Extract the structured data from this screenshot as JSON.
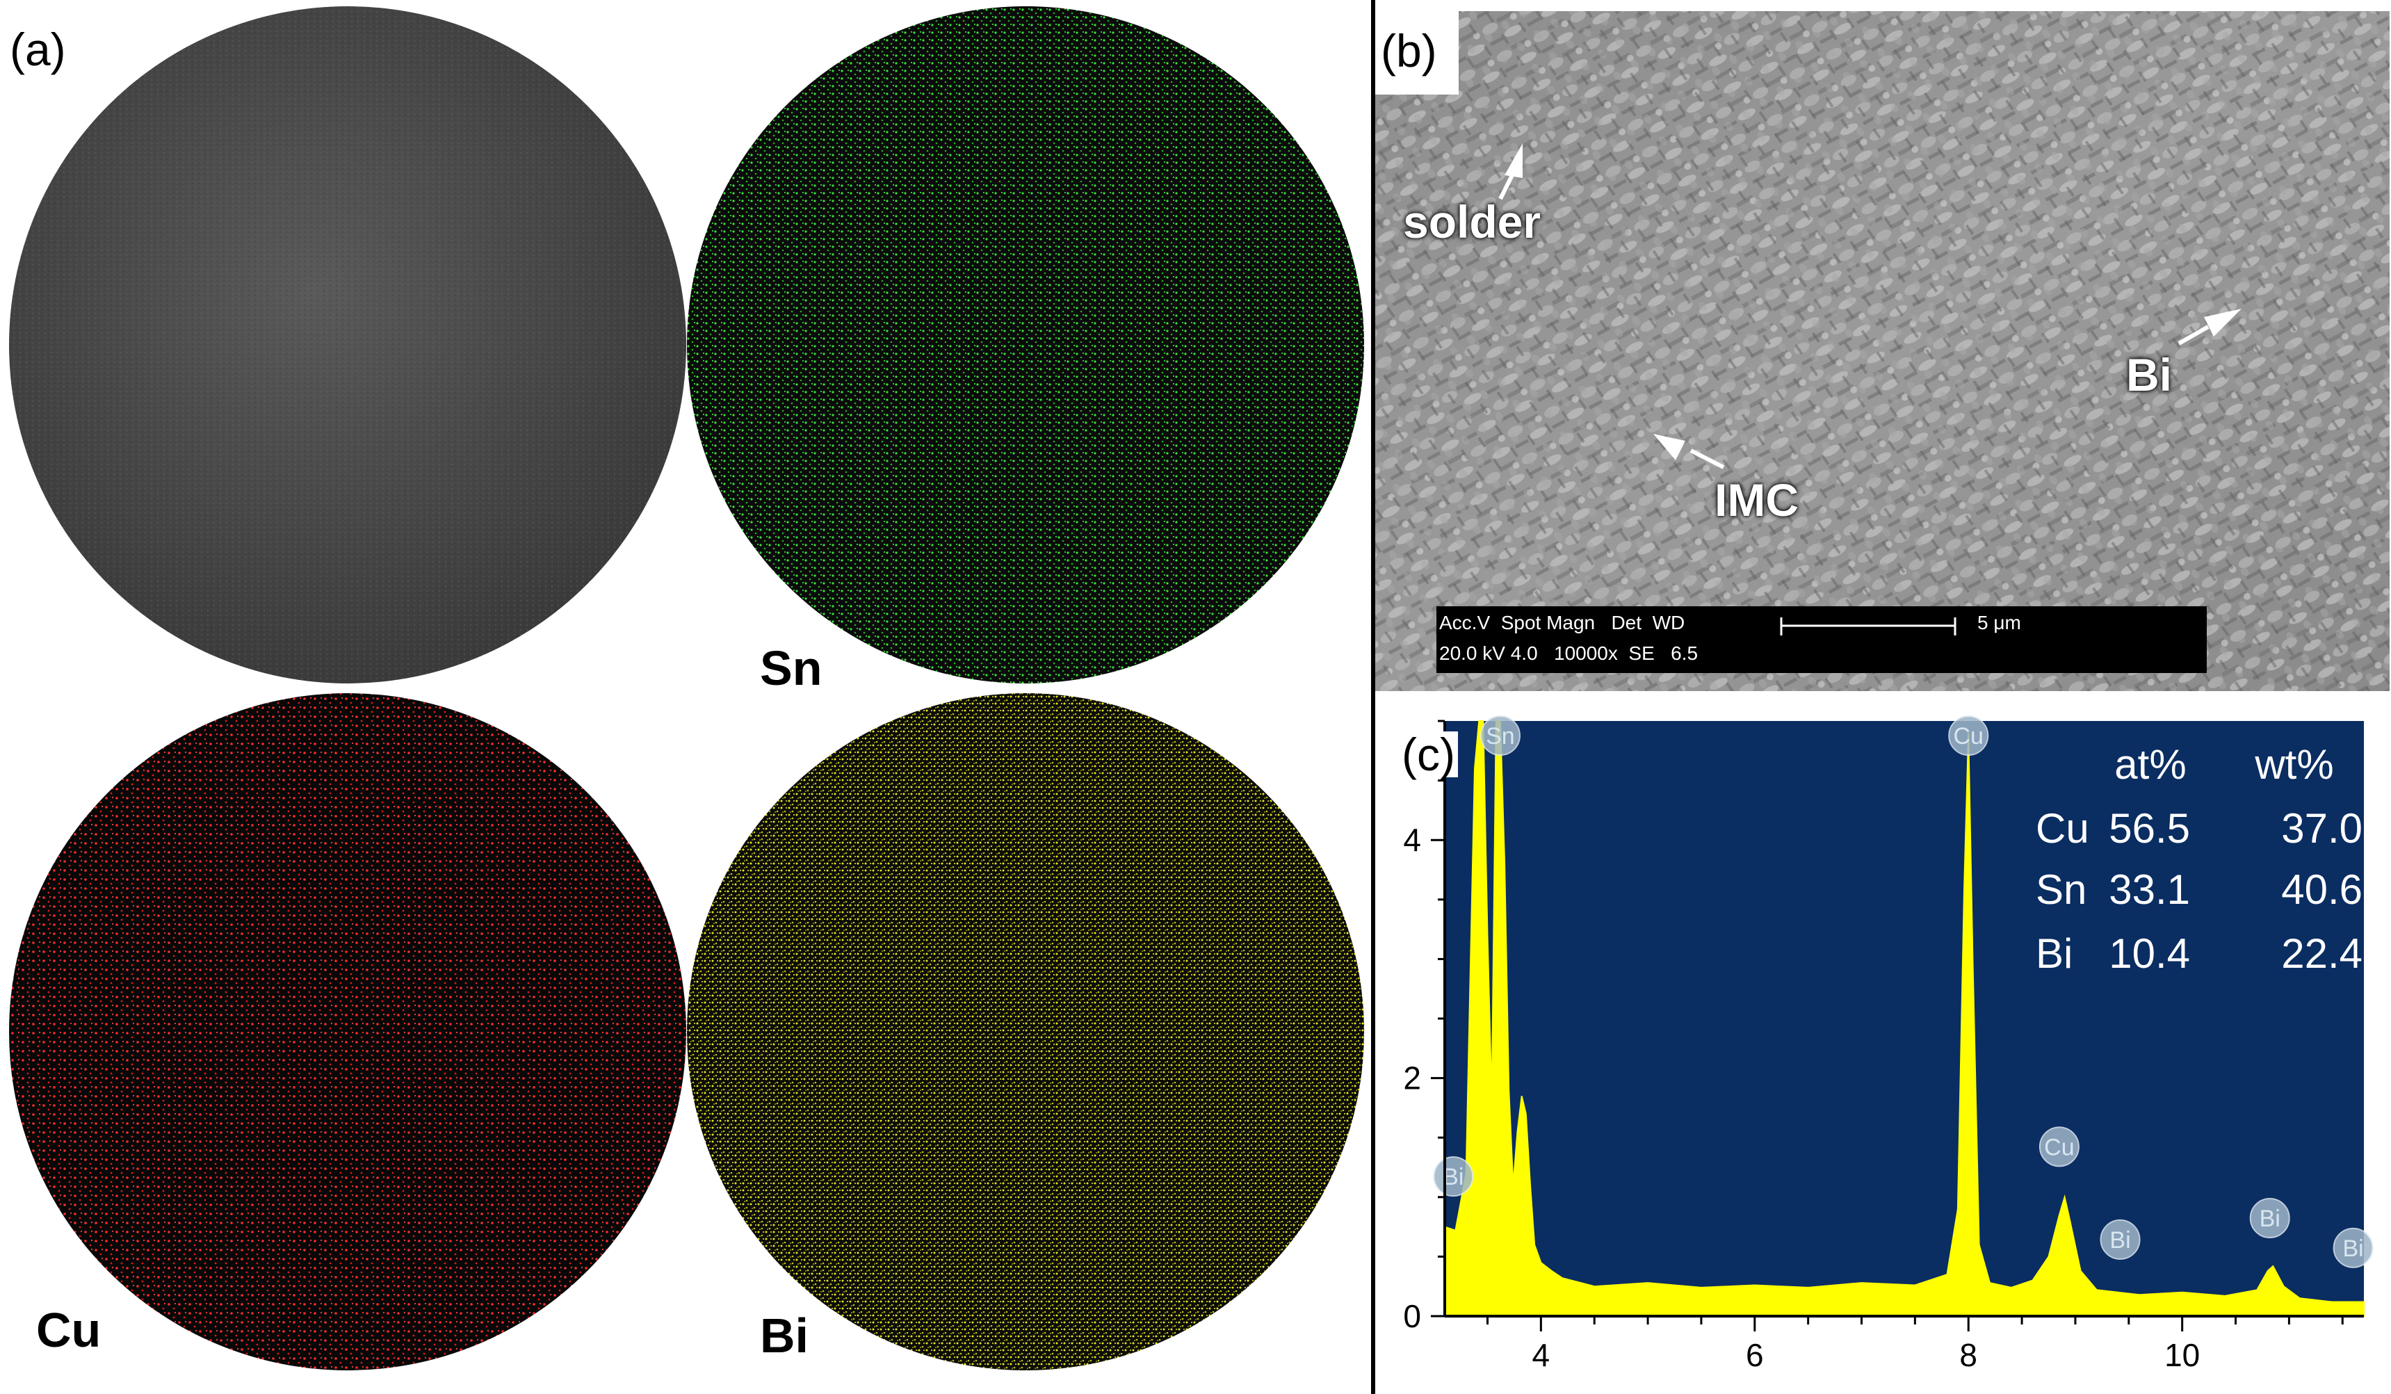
{
  "panel_a": {
    "letter": "(a)",
    "maps": [
      {
        "element": "",
        "color": "#4a4a4a",
        "kind": "sem"
      },
      {
        "element": "Sn",
        "color": "#2fd32f",
        "kind": "map"
      },
      {
        "element": "Cu",
        "color": "#ff2020",
        "kind": "map"
      },
      {
        "element": "Bi",
        "color": "#d8d81a",
        "kind": "map"
      }
    ]
  },
  "panel_b": {
    "letter": "(b)",
    "labels": {
      "solder": "solder",
      "bi": "Bi",
      "imc": "IMC"
    },
    "databar": {
      "row1": "Acc.V  Spot Magn   Det  WD",
      "row2": "20.0 kV 4.0   10000x  SE   6.5",
      "scale": "5 μm"
    }
  },
  "panel_c": {
    "letter": "(c)",
    "table": {
      "header": [
        "",
        "at%",
        "wt%"
      ],
      "rows": [
        [
          "Cu",
          "56.5",
          "37.0"
        ],
        [
          "Sn",
          "33.1",
          "40.6"
        ],
        [
          "Bi",
          "10.4",
          "22.4"
        ]
      ]
    },
    "colors": {
      "background": "#0a2d62",
      "spectrum": "#ffff00"
    }
  },
  "chart_data": {
    "type": "area",
    "title": "",
    "xlabel": "",
    "ylabel": "",
    "xlim": [
      3.1,
      11.7
    ],
    "ylim": [
      0,
      5.0
    ],
    "xticks": [
      4,
      6,
      8,
      10
    ],
    "yticks": [
      0,
      2,
      4
    ],
    "series": [
      {
        "x": [
          3.1,
          3.2,
          3.3,
          3.38,
          3.42,
          3.46,
          3.5,
          3.54,
          3.58,
          3.62,
          3.66,
          3.7,
          3.74,
          3.78,
          3.82,
          3.86,
          3.9,
          3.94,
          4.0,
          4.1,
          4.2,
          4.5,
          5.0,
          5.5,
          6.0,
          6.5,
          7.0,
          7.5,
          7.8,
          7.9,
          7.96,
          8.0,
          8.04,
          8.1,
          8.2,
          8.4,
          8.6,
          8.75,
          8.85,
          8.9,
          8.95,
          9.05,
          9.2,
          9.4,
          9.6,
          10.0,
          10.4,
          10.7,
          10.8,
          10.85,
          10.95,
          11.1,
          11.4,
          11.7
        ],
        "y": [
          0.75,
          0.72,
          1.2,
          4.6,
          5.0,
          5.0,
          3.2,
          1.8,
          5.0,
          5.0,
          3.8,
          1.9,
          1.1,
          1.55,
          1.85,
          1.7,
          1.1,
          0.6,
          0.45,
          0.38,
          0.32,
          0.25,
          0.28,
          0.24,
          0.26,
          0.24,
          0.28,
          0.26,
          0.35,
          0.9,
          3.6,
          4.9,
          3.0,
          0.6,
          0.28,
          0.24,
          0.3,
          0.5,
          0.85,
          1.0,
          0.8,
          0.38,
          0.22,
          0.2,
          0.18,
          0.2,
          0.17,
          0.22,
          0.38,
          0.42,
          0.25,
          0.15,
          0.12,
          0.12
        ]
      }
    ],
    "peak_labels": [
      {
        "text": "Bi",
        "x": 3.18,
        "y": 1.15
      },
      {
        "text": "Sn",
        "x": 3.62,
        "y": 5.0
      },
      {
        "text": "Cu",
        "x": 8.0,
        "y": 5.0
      },
      {
        "text": "Cu",
        "x": 8.85,
        "y": 1.4
      },
      {
        "text": "Bi",
        "x": 9.42,
        "y": 0.62
      },
      {
        "text": "Bi",
        "x": 10.82,
        "y": 0.8
      },
      {
        "text": "Bi",
        "x": 11.6,
        "y": 0.55
      }
    ],
    "grid": false,
    "legend": "none"
  }
}
